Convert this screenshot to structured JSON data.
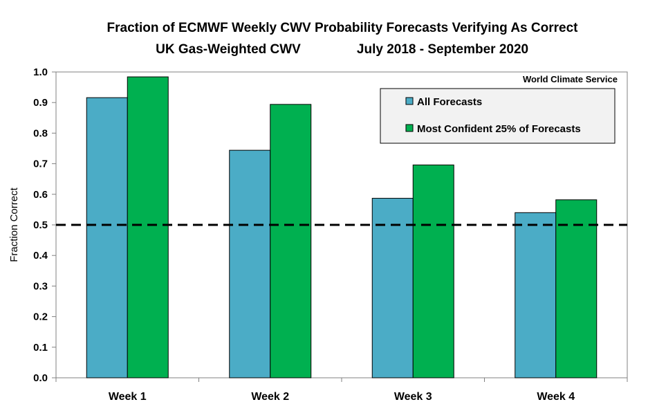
{
  "chart_data": {
    "type": "bar",
    "title": "Fraction of ECMWF Weekly CWV Probability Forecasts Verifying As Correct",
    "subtitle_left": "UK Gas-Weighted CWV",
    "subtitle_right": "July 2018 - September 2020",
    "xlabel": "",
    "ylabel": "Fraction Correct",
    "ylim": [
      0,
      1.0
    ],
    "yticks": [
      "0.0",
      "0.1",
      "0.2",
      "0.3",
      "0.4",
      "0.5",
      "0.6",
      "0.7",
      "0.8",
      "0.9",
      "1.0"
    ],
    "categories": [
      "Week 1",
      "Week 2",
      "Week 3",
      "Week 4"
    ],
    "series": [
      {
        "name": "All Forecasts",
        "color": "#4bacc6",
        "values": [
          0.916,
          0.744,
          0.587,
          0.54
        ]
      },
      {
        "name": "Most Confident 25% of Forecasts",
        "color": "#00b050",
        "values": [
          0.984,
          0.894,
          0.696,
          0.582
        ]
      }
    ],
    "reference_line": {
      "value": 0.5,
      "style": "dashed",
      "color": "#000000"
    },
    "legend_position": "top-right",
    "grid": false,
    "annotation": "World Climate Service"
  }
}
